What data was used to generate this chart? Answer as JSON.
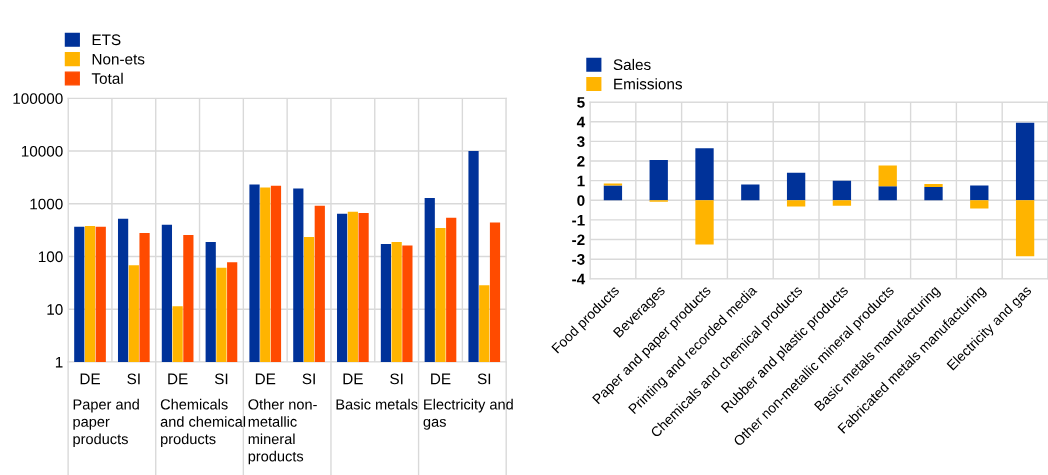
{
  "chart_data": [
    {
      "type": "bar",
      "categories": [
        "DE",
        "SI",
        "DE",
        "SI",
        "DE",
        "SI",
        "DE",
        "SI",
        "DE",
        "SI"
      ],
      "series": [
        {
          "name": "ETS",
          "color": "#003299",
          "values": [
            365,
            519,
            398,
            188,
            2320,
            1950,
            646,
            172,
            1290,
            10000
          ]
        },
        {
          "name": "Non-ets",
          "color": "#ffb400",
          "values": [
            380,
            68,
            11.4,
            61,
            2040,
            234,
            705,
            188,
            348,
            28.5
          ]
        },
        {
          "name": "Total",
          "color": "#ff4b00",
          "values": [
            365,
            280,
            256,
            78,
            2190,
            920,
            665,
            162,
            542,
            442
          ]
        }
      ],
      "log": "y",
      "ylim": [
        1,
        100000
      ],
      "yticks": [
        1,
        10,
        100,
        1000,
        10000,
        100000
      ],
      "grid": true,
      "legend": "top left",
      "annotations": [
        "Paper and\npaper\nproducts",
        "Chemicals\nand chemical\nproducts",
        "Other non-\nmetallic\nmineral\nproducts",
        "Basic metals",
        "Electricity and\ngas"
      ]
    },
    {
      "type": "bar",
      "stacked": true,
      "categories": [
        "Food products",
        "Beverages",
        "Paper and paper products",
        "Printing and recorded media",
        "Chemicals and chemical products",
        "Rubber and plastic products",
        "Other non-metallic mineral products",
        "Basic metals manufacturing",
        "Fabricated metals manufacturing",
        "Electricity and gas"
      ],
      "series": [
        {
          "name": "Sales",
          "color": "#003299",
          "values": [
            0.75,
            2.05,
            2.65,
            0.8,
            1.4,
            1.0,
            0.72,
            0.68,
            0.75,
            3.95
          ]
        },
        {
          "name": "Emissions",
          "color": "#ffb400",
          "values": [
            0.1,
            -0.07,
            -2.25,
            null,
            -0.32,
            -0.28,
            1.05,
            0.15,
            -0.42,
            -2.85
          ]
        }
      ],
      "ylim": [
        -4,
        5
      ],
      "yticks": [
        -4,
        -3,
        -2,
        -1,
        0,
        1,
        2,
        3,
        4,
        5
      ],
      "grid": true,
      "legend": "top left"
    }
  ]
}
